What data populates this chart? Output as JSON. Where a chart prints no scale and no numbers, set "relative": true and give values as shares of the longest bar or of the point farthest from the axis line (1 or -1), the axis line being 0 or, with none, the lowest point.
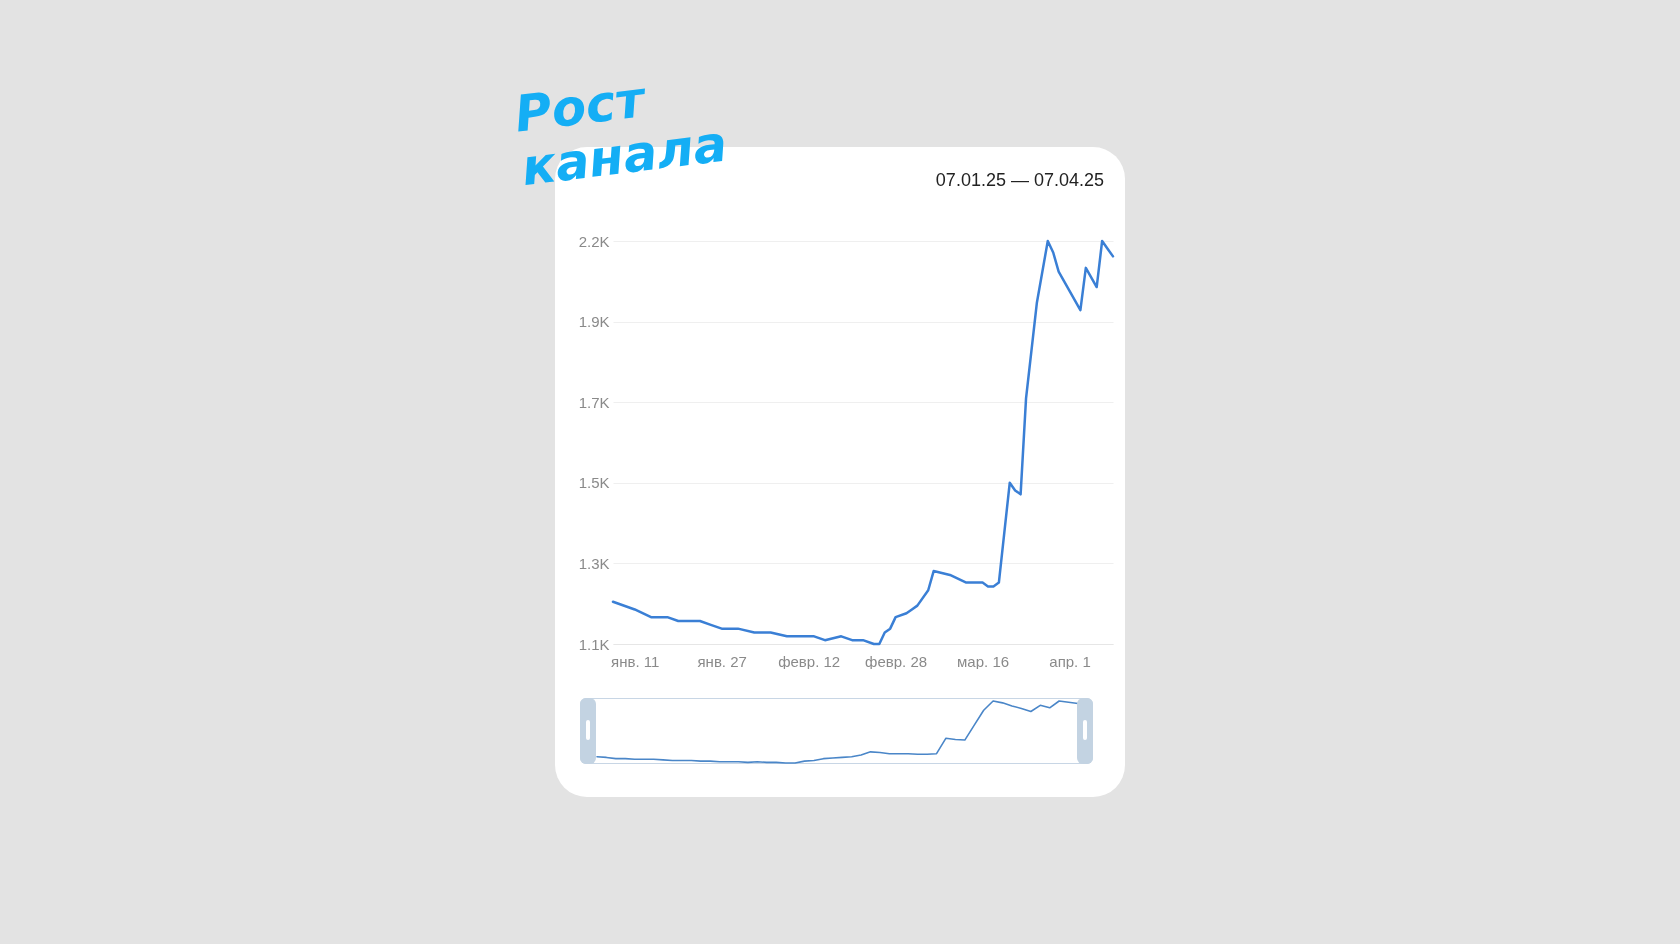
{
  "chart_data": [
    {
      "type": "line",
      "title": "Рост канала",
      "subtitle": "07.01.25 — 07.04.25",
      "color": "#3a7fd5",
      "grid": "y",
      "xlim": [
        "--01-07",
        "--04-09"
      ],
      "ylim": [
        1.1,
        2.15
      ],
      "xticks": [
        {
          "value": "--01-11",
          "label": "янв. 11"
        },
        {
          "value": "--01-27",
          "label": "янв. 27"
        },
        {
          "value": "--02-12",
          "label": "февр. 12"
        },
        {
          "value": "--02-28",
          "label": "февр. 28"
        },
        {
          "value": "--03-16",
          "label": "мар. 16"
        },
        {
          "value": "--04-01",
          "label": "апр. 1"
        }
      ],
      "yticks": [
        {
          "value": 1.1,
          "label": "1.1K"
        },
        {
          "value": 1.31,
          "label": "1.3K"
        },
        {
          "value": 1.52,
          "label": "1.5K"
        },
        {
          "value": 1.73,
          "label": "1.7K"
        },
        {
          "value": 1.94,
          "label": "1.9K"
        },
        {
          "value": 2.15,
          "label": "2.2K"
        }
      ],
      "x": [
        "--01-07",
        "--01-11",
        "--01-14",
        "--01-17",
        "--01-19",
        "--01-21",
        "--01-23",
        "--01-25",
        "--01-27",
        "--01-29",
        "--01-30",
        "--02-02",
        "--02-05",
        "--02-08",
        "--02-10",
        "--02-13",
        "--02-15",
        "--02-18",
        "--02-20",
        "--02-22",
        "--02-24",
        "--02-25",
        "--02-26",
        "--02-27",
        "--02-28",
        "--03-02",
        "--03-03",
        "--03-04",
        "--03-06",
        "--03-07",
        "--03-10",
        "--03-13",
        "--03-15",
        "--03-16",
        "--03-17",
        "--03-18",
        "--03-19",
        "--03-21",
        "--03-22",
        "--03-23",
        "--03-24",
        "--03-26",
        "--03-28",
        "--03-29",
        "--03-30",
        "--04-01",
        "--04-03",
        "--04-04",
        "--04-06",
        "--04-07",
        "--04-08",
        "--04-09"
      ],
      "values": [
        1.21,
        1.19,
        1.17,
        1.17,
        1.16,
        1.16,
        1.16,
        1.15,
        1.14,
        1.14,
        1.14,
        1.13,
        1.13,
        1.12,
        1.12,
        1.12,
        1.11,
        1.12,
        1.11,
        1.11,
        1.1,
        1.1,
        1.13,
        1.14,
        1.17,
        1.18,
        1.19,
        1.2,
        1.24,
        1.29,
        1.28,
        1.26,
        1.26,
        1.26,
        1.25,
        1.25,
        1.26,
        1.52,
        1.5,
        1.49,
        1.74,
        1.99,
        2.15,
        2.12,
        2.07,
        2.02,
        1.97,
        2.08,
        2.03,
        2.15,
        2.13,
        2.11
      ]
    },
    {
      "type": "line",
      "color": "#4a86c8",
      "relative": true,
      "categories": [
        null,
        null,
        null,
        null,
        null,
        null,
        null,
        null,
        null,
        null,
        null,
        null,
        null,
        null,
        null,
        null,
        null,
        null,
        null,
        null,
        null,
        null,
        null,
        null,
        null,
        null,
        null,
        null,
        null,
        null,
        null,
        null,
        null,
        null,
        null,
        null,
        null,
        null,
        null,
        null,
        null,
        null,
        null,
        null,
        null,
        null,
        null,
        null,
        null,
        null,
        null,
        null
      ],
      "values": [
        0.1,
        0.09,
        0.07,
        0.07,
        0.06,
        0.06,
        0.06,
        0.05,
        0.04,
        0.04,
        0.04,
        0.03,
        0.03,
        0.02,
        0.02,
        0.02,
        0.01,
        0.02,
        0.01,
        0.01,
        0,
        0,
        0.03,
        0.04,
        0.07,
        0.08,
        0.09,
        0.1,
        0.13,
        0.18,
        0.17,
        0.15,
        0.15,
        0.15,
        0.14,
        0.14,
        0.15,
        0.4,
        0.38,
        0.37,
        0.61,
        0.85,
        1,
        0.97,
        0.92,
        0.88,
        0.83,
        0.93,
        0.89,
        1,
        0.98,
        0.96
      ]
    }
  ]
}
